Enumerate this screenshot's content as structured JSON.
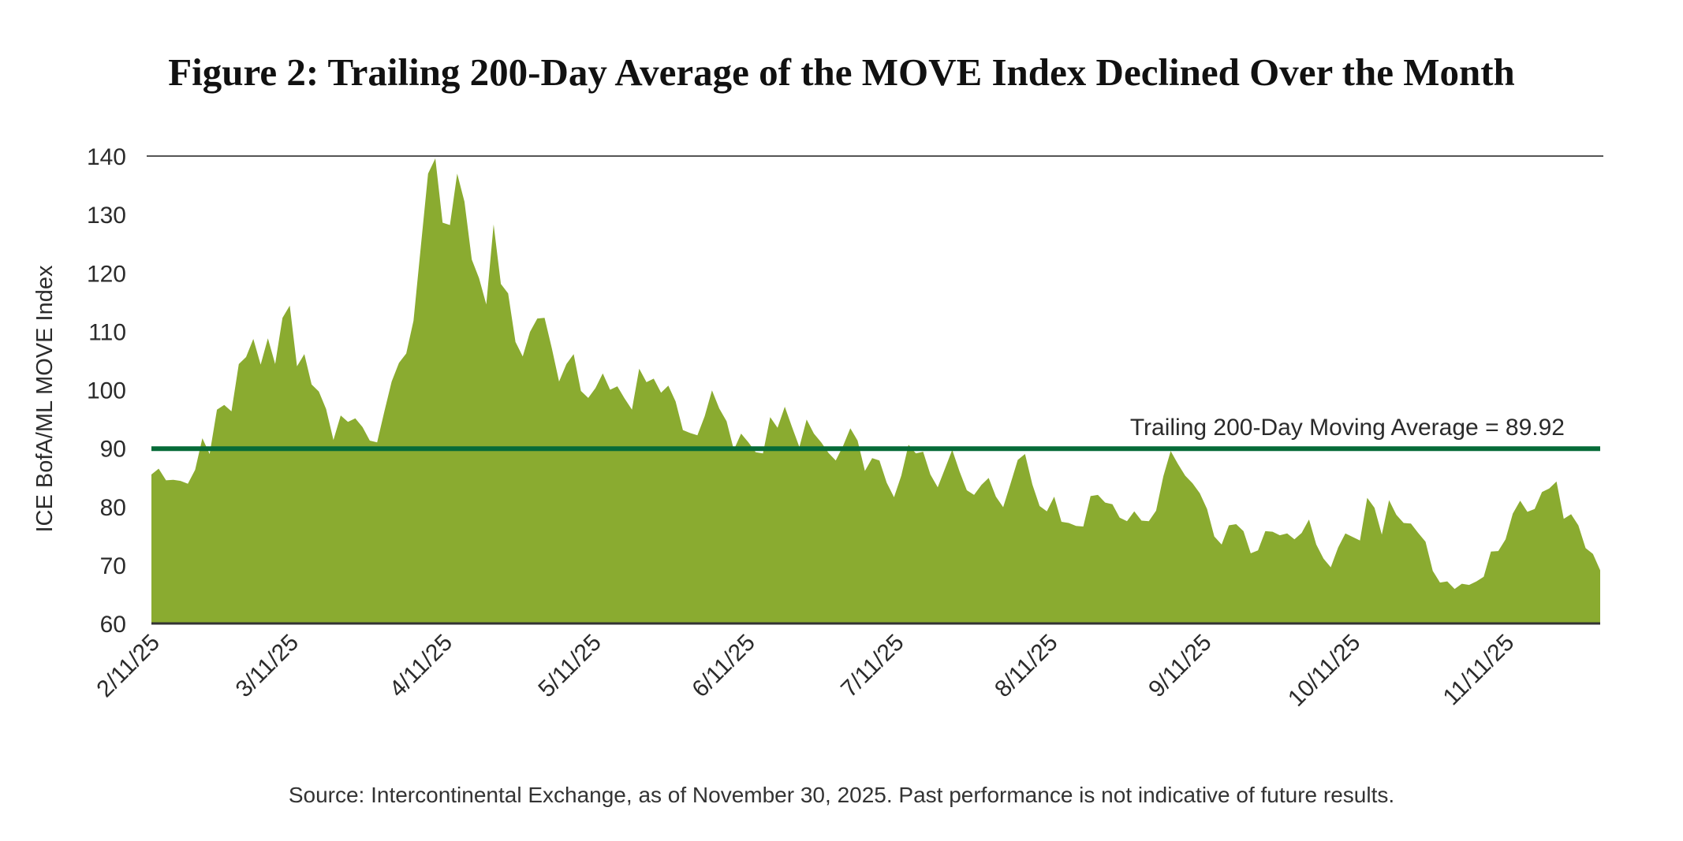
{
  "chart_data": {
    "type": "area",
    "title": "Figure 2: Trailing 200-Day Average of the MOVE Index Declined Over the Month",
    "ylabel": "ICE BofA/ML MOVE Index",
    "xlabel": "",
    "ylim": [
      60,
      140
    ],
    "yticks": [
      60,
      70,
      80,
      90,
      100,
      110,
      120,
      130,
      140
    ],
    "xlim": [
      "2025-02-11",
      "2025-11-30"
    ],
    "xticks": [
      {
        "label": "2/11/25",
        "date": "2025-02-11"
      },
      {
        "label": "3/11/25",
        "date": "2025-03-11"
      },
      {
        "label": "4/11/25",
        "date": "2025-04-11"
      },
      {
        "label": "5/11/25",
        "date": "2025-05-11"
      },
      {
        "label": "6/11/25",
        "date": "2025-06-11"
      },
      {
        "label": "7/11/25",
        "date": "2025-07-11"
      },
      {
        "label": "8/11/25",
        "date": "2025-08-11"
      },
      {
        "label": "9/11/25",
        "date": "2025-09-11"
      },
      {
        "label": "10/11/25",
        "date": "2025-10-11"
      },
      {
        "label": "11/11/25",
        "date": "2025-11-11"
      }
    ],
    "grid": "top line only",
    "values": [
      85.5,
      86.5,
      84.5,
      84.6,
      84.4,
      83.9,
      86.3,
      91.7,
      89.0,
      96.6,
      97.4,
      96.3,
      104.4,
      105.6,
      108.7,
      104.3,
      108.8,
      104.4,
      112.3,
      114.4,
      104.0,
      106.1,
      100.9,
      99.7,
      96.7,
      91.4,
      95.6,
      94.5,
      95.1,
      93.6,
      91.3,
      91.0,
      96.3,
      101.4,
      104.6,
      106.2,
      111.8,
      124.5,
      137.0,
      139.6,
      128.6,
      128.2,
      137.0,
      132.2,
      122.3,
      119.1,
      114.6,
      128.3,
      118.1,
      116.5,
      108.2,
      105.7,
      109.9,
      112.2,
      112.3,
      107.1,
      101.4,
      104.4,
      106.1,
      99.8,
      98.6,
      100.3,
      102.8,
      100.0,
      100.6,
      98.5,
      96.6,
      103.6,
      101.3,
      101.9,
      99.5,
      100.7,
      98.0,
      93.1,
      92.6,
      92.2,
      95.5,
      99.9,
      96.8,
      94.6,
      89.7,
      92.5,
      91.0,
      89.3,
      89.1,
      95.3,
      93.5,
      97.1,
      93.6,
      90.2,
      94.9,
      92.5,
      91.0,
      89.2,
      87.9,
      90.4,
      93.4,
      91.3,
      86.1,
      88.3,
      87.9,
      84.1,
      81.6,
      85.3,
      90.6,
      89.1,
      89.4,
      85.5,
      83.3,
      86.5,
      89.7,
      86.0,
      82.8,
      82.0,
      83.7,
      84.9,
      81.7,
      79.9,
      83.9,
      88.0,
      89.0,
      83.8,
      80.1,
      79.2,
      81.7,
      77.4,
      77.2,
      76.7,
      76.6,
      81.8,
      82.0,
      80.7,
      80.4,
      78.1,
      77.5,
      79.2,
      77.6,
      77.5,
      79.3,
      85.2,
      89.5,
      87.3,
      85.3,
      84.0,
      82.3,
      79.6,
      74.9,
      73.5,
      76.8,
      77.0,
      75.8,
      72.0,
      72.5,
      75.8,
      75.7,
      75.1,
      75.4,
      74.4,
      75.5,
      77.8,
      73.5,
      71.1,
      69.6,
      73.0,
      75.4,
      74.8,
      74.2,
      81.5,
      79.8,
      75.2,
      81.1,
      78.6,
      77.2,
      77.1,
      75.5,
      74.0,
      69.0,
      67.0,
      67.2,
      65.9,
      66.8,
      66.6,
      67.2,
      68.0,
      72.3,
      72.4,
      74.4,
      78.8,
      81.0,
      79.1,
      79.6,
      82.5,
      83.1,
      84.3,
      77.9,
      78.7,
      76.8,
      72.9,
      71.9,
      69.1
    ],
    "reference_line": {
      "label": "Trailing 200-Day Moving Average = 89.92",
      "value": 89.92
    },
    "colors": {
      "area": "#8aab30",
      "reference_line": "#066b38",
      "axis": "#333333",
      "gridline": "#555555"
    },
    "source": "Source: Intercontinental Exchange, as of November 30, 2025. Past performance is not indicative of future results."
  }
}
